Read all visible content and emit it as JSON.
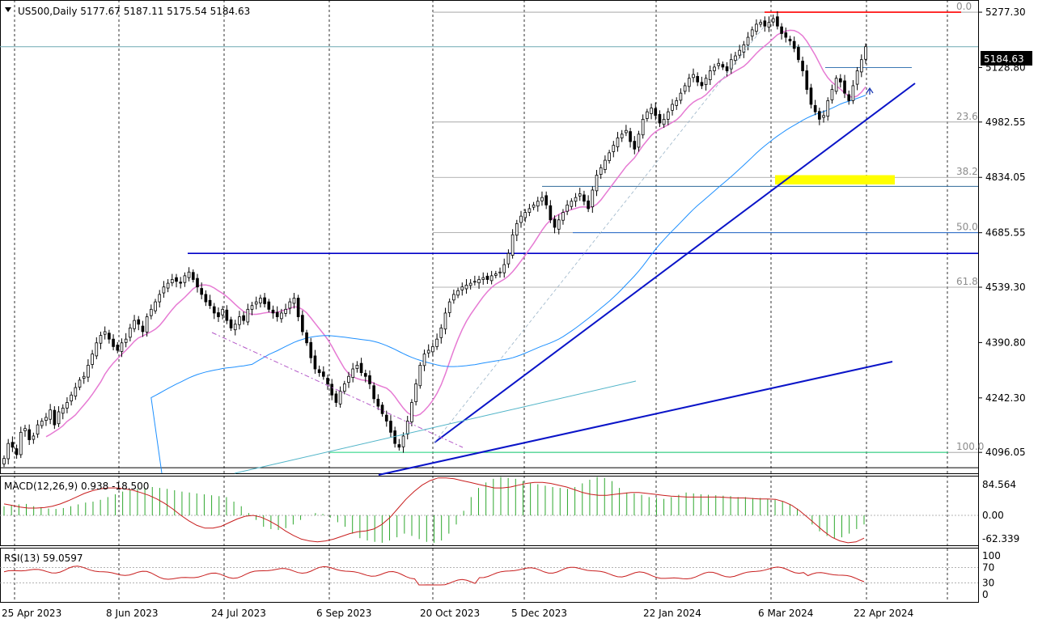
{
  "chart_data": {
    "type": "candlestick",
    "symbol_header": "US500,Daily  5177.67 5187.11 5175.54 5184.63",
    "ohlc_last": {
      "open": 5177.67,
      "high": 5187.11,
      "low": 5175.54,
      "close": 5184.63
    },
    "current_price_label": "5184.63",
    "price_axis": {
      "ylim": [
        4040,
        5310
      ],
      "tick_labels": [
        "5277.30",
        "5128.80",
        "4982.55",
        "4834.05",
        "4685.55",
        "4539.30",
        "4390.80",
        "4242.30",
        "4096.05"
      ]
    },
    "date_axis": {
      "labels": [
        "25 Apr 2023",
        "8 Jun 2023",
        "24 Jul 2023",
        "6 Sep 2023",
        "20 Oct 2023",
        "5 Dec 2023",
        "22 Jan 2024",
        "6 Mar 2024",
        "22 Apr 2024"
      ]
    },
    "closes": [
      4080,
      4120,
      4110,
      4090,
      4150,
      4160,
      4130,
      4140,
      4170,
      4180,
      4190,
      4210,
      4170,
      4205,
      4215,
      4230,
      4250,
      4270,
      4290,
      4300,
      4330,
      4360,
      4390,
      4410,
      4420,
      4400,
      4380,
      4370,
      4390,
      4400,
      4430,
      4450,
      4440,
      4420,
      4460,
      4480,
      4500,
      4520,
      4540,
      4550,
      4560,
      4555,
      4550,
      4570,
      4580,
      4560,
      4540,
      4520,
      4500,
      4490,
      4470,
      4460,
      4480,
      4450,
      4430,
      4440,
      4460,
      4450,
      4480,
      4490,
      4500,
      4510,
      4495,
      4480,
      4470,
      4460,
      4470,
      4480,
      4500,
      4510,
      4460,
      4420,
      4390,
      4350,
      4320,
      4310,
      4300,
      4280,
      4250,
      4230,
      4260,
      4280,
      4300,
      4320,
      4330,
      4310,
      4300,
      4280,
      4240,
      4220,
      4200,
      4180,
      4150,
      4120,
      4110,
      4140,
      4180,
      4230,
      4280,
      4330,
      4360,
      4370,
      4380,
      4400,
      4430,
      4470,
      4500,
      4520,
      4530,
      4540,
      4545,
      4550,
      4555,
      4560,
      4565,
      4560,
      4570,
      4575,
      4580,
      4600,
      4630,
      4680,
      4710,
      4730,
      4740,
      4750,
      4760,
      4770,
      4780,
      4760,
      4720,
      4700,
      4720,
      4740,
      4760,
      4770,
      4780,
      4790,
      4770,
      4750,
      4800,
      4840,
      4860,
      4880,
      4900,
      4920,
      4940,
      4950,
      4960,
      4930,
      4910,
      4950,
      4990,
      5010,
      5020,
      5000,
      4980,
      4990,
      5010,
      5030,
      5040,
      5060,
      5080,
      5100,
      5110,
      5090,
      5080,
      5100,
      5120,
      5130,
      5140,
      5130,
      5120,
      5150,
      5160,
      5175,
      5190,
      5210,
      5230,
      5245,
      5250,
      5240,
      5250,
      5260,
      5240,
      5220,
      5210,
      5200,
      5180,
      5150,
      5120,
      5070,
      5030,
      5010,
      4990,
      5000,
      5040,
      5070,
      5100,
      5090,
      5060,
      5040,
      5080,
      5120,
      5150,
      5184.63
    ],
    "moving_averages": [
      {
        "name": "MA 50",
        "color": "#e67ad3"
      },
      {
        "name": "MA 200",
        "color": "#1e90ff"
      }
    ],
    "fibonacci_levels": [
      {
        "label": "0.0",
        "price": 5277.3
      },
      {
        "label": "23.6",
        "price": 4982.55
      },
      {
        "label": "38.2",
        "price": 4834.05
      },
      {
        "label": "50.0",
        "price": 4685.55
      },
      {
        "label": "61.8",
        "price": 4539.3
      },
      {
        "label": "100.0",
        "price": 4096.05
      }
    ],
    "horizontal_levels": [
      {
        "price": 5277.3,
        "color": "#ff0000"
      },
      {
        "price": 5184.63,
        "color": "#6fa8b4"
      },
      {
        "price": 5128.8,
        "color": "#3c78b4"
      },
      {
        "price": 4810,
        "color": "#2f6a9a"
      },
      {
        "price": 4685.55,
        "color": "#1e64c8"
      },
      {
        "price": 4630,
        "color": "#0000c8"
      },
      {
        "price": 4096.05,
        "color": "#19d27a"
      },
      {
        "price": 4055,
        "color": "#000000"
      }
    ],
    "zone": {
      "price_low": 4815,
      "price_high": 4840,
      "color": "#ffff00"
    },
    "macd": {
      "label": "MACD(12,26,9) 0.938 -18.500",
      "scale_labels": [
        "84.564",
        "0.00",
        "-62.339"
      ],
      "hist": [
        20,
        22,
        24,
        25,
        20,
        18,
        15,
        14,
        16,
        20,
        24,
        28,
        30,
        34,
        40,
        46,
        52,
        56,
        58,
        60,
        62,
        60,
        58,
        55,
        52,
        50,
        48,
        46,
        44,
        42,
        40,
        30,
        20,
        5,
        -10,
        -25,
        -30,
        -32,
        -28,
        -20,
        -10,
        0,
        5,
        3,
        -5,
        -15,
        -25,
        -40,
        -50,
        -55,
        -58,
        -60,
        -55,
        -48,
        -40,
        -45,
        -52,
        -58,
        -60,
        -55,
        -40,
        -20,
        10,
        40,
        60,
        72,
        80,
        84,
        82,
        80,
        75,
        70,
        68,
        65,
        62,
        60,
        58,
        62,
        70,
        78,
        84,
        82,
        75,
        60,
        50,
        48,
        45,
        40,
        38,
        36,
        40,
        45,
        50,
        48,
        46,
        45,
        44,
        43,
        42,
        40,
        40,
        38,
        38,
        36,
        34,
        30,
        25,
        15,
        0,
        -20,
        -35,
        -45,
        -50,
        -48,
        -40,
        -30,
        -20
      ],
      "signal": [
        25,
        22,
        18,
        16,
        16,
        17,
        20,
        25,
        32,
        40,
        48,
        54,
        58,
        60,
        60,
        58,
        55,
        50,
        44,
        36,
        26,
        14,
        0,
        -12,
        -22,
        -28,
        -28,
        -24,
        -16,
        -8,
        -2,
        0,
        -4,
        -12,
        -22,
        -34,
        -44,
        -52,
        -56,
        -58,
        -56,
        -52,
        -46,
        -40,
        -36,
        -34,
        -30,
        -20,
        -5,
        15,
        35,
        52,
        66,
        76,
        82,
        82,
        80,
        76,
        72,
        68,
        64,
        60,
        60,
        62,
        66,
        70,
        72,
        72,
        70,
        66,
        62,
        56,
        50,
        46,
        44,
        44,
        46,
        48,
        50,
        50,
        48,
        46,
        44,
        42,
        41,
        40,
        40,
        40,
        40,
        40,
        39,
        38,
        38,
        37,
        36,
        36,
        35,
        30,
        22,
        10,
        -5,
        -20,
        -35,
        -48,
        -56,
        -60,
        -58,
        -50
      ]
    },
    "rsi": {
      "label": "RSI(13) 59.0597",
      "scale_labels": [
        "100",
        "70",
        "30",
        "0"
      ]
    }
  }
}
